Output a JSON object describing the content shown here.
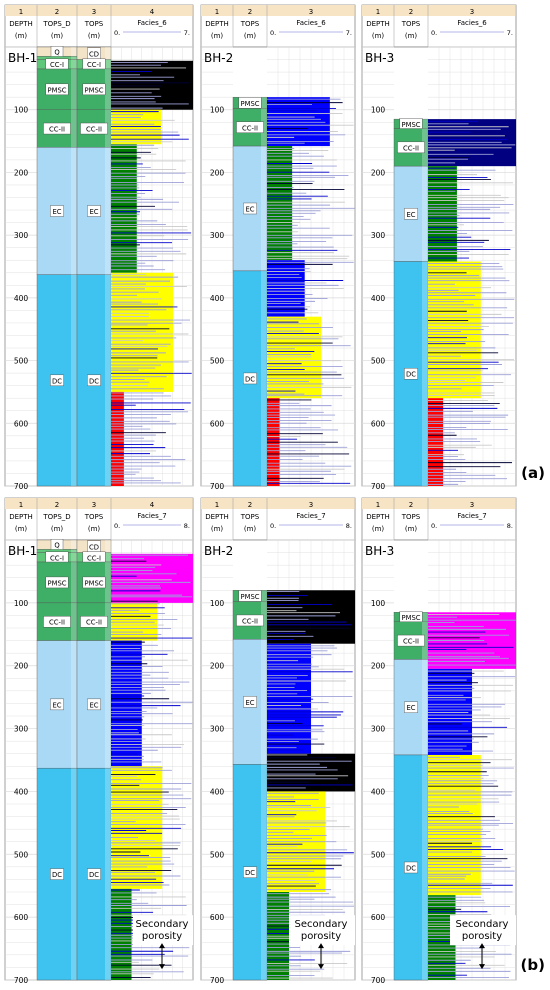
{
  "panels": [
    {
      "label": "(a)",
      "facies_name": "Facies_6",
      "scale_min": "0.",
      "scale_max": "7.",
      "wells": [
        {
          "name": "BH-1",
          "headers": [
            {
              "num": "1",
              "name": "DEPTH",
              "unit": "(m)"
            },
            {
              "num": "2",
              "name": "TOPS_D",
              "unit": "(m)"
            },
            {
              "num": "3",
              "name": "TOPS",
              "unit": "(m)"
            },
            {
              "num": "4",
              "name": "",
              "unit": ""
            }
          ],
          "col2_units": [
            {
              "name": "Q",
              "top": 0,
              "base": 15,
              "color": "#f3e4c8"
            },
            {
              "name": "",
              "top": 15,
              "base": 20,
              "color": "#5fc77a"
            },
            {
              "name": "CC-I",
              "top": 20,
              "base": 35,
              "color": "#5fc77a"
            },
            {
              "name": "PMSC",
              "top": 35,
              "base": 100,
              "color": "#3fae67"
            },
            {
              "name": "CC-II",
              "top": 100,
              "base": 160,
              "color": "#3fae67"
            },
            {
              "name": "EC",
              "top": 160,
              "base": 363,
              "color": "#a9d9f5"
            },
            {
              "name": "DC",
              "top": 363,
              "base": 700,
              "color": "#3ec3f0"
            }
          ],
          "col3_units": [
            {
              "name": "CD",
              "top": 0,
              "base": 20,
              "color": "#f3e4c8"
            },
            {
              "name": "CC-I",
              "top": 20,
              "base": 35,
              "color": "#5fc77a"
            },
            {
              "name": "PMSC",
              "top": 35,
              "base": 100,
              "color": "#3fae67"
            },
            {
              "name": "CC-II",
              "top": 100,
              "base": 160,
              "color": "#3fae67"
            },
            {
              "name": "EC",
              "top": 160,
              "base": 363,
              "color": "#a9d9f5"
            },
            {
              "name": "DC",
              "top": 363,
              "base": 700,
              "color": "#3ec3f0"
            }
          ],
          "facies": [
            {
              "top": 22,
              "base": 100,
              "color": "#000000",
              "value": 7.0
            },
            {
              "top": 100,
              "base": 155,
              "color": "#ffff00",
              "value": 4.3
            },
            {
              "top": 155,
              "base": 360,
              "color": "#008000",
              "value": 2.2
            },
            {
              "top": 360,
              "base": 550,
              "color": "#ffff00",
              "value": 5.3
            },
            {
              "top": 550,
              "base": 700,
              "color": "#ff0000",
              "value": 1.1
            }
          ]
        },
        {
          "name": "BH-2",
          "headers": [
            {
              "num": "1",
              "name": "DEPTH",
              "unit": "(m)"
            },
            {
              "num": "2",
              "name": "TOPS",
              "unit": "(m)"
            },
            {
              "num": "3",
              "name": "",
              "unit": ""
            }
          ],
          "col2_units": [
            {
              "name": "PMSC",
              "top": 80,
              "base": 98,
              "color": "#3fae67"
            },
            {
              "name": "CC-II",
              "top": 98,
              "base": 158,
              "color": "#3fae67"
            },
            {
              "name": "EC",
              "top": 158,
              "base": 357,
              "color": "#a9d9f5"
            },
            {
              "name": "DC",
              "top": 357,
              "base": 700,
              "color": "#3ec3f0"
            }
          ],
          "facies": [
            {
              "top": 80,
              "base": 158,
              "color": "#0000ff",
              "value": 5.0
            },
            {
              "top": 158,
              "base": 340,
              "color": "#008000",
              "value": 2.0
            },
            {
              "top": 340,
              "base": 430,
              "color": "#0000ff",
              "value": 3.0
            },
            {
              "top": 430,
              "base": 560,
              "color": "#ffff00",
              "value": 4.3
            },
            {
              "top": 560,
              "base": 700,
              "color": "#ff0000",
              "value": 1.0
            }
          ]
        },
        {
          "name": "BH-3",
          "headers": [
            {
              "num": "1",
              "name": "DEPTH",
              "unit": "(m)"
            },
            {
              "num": "2",
              "name": "TOPS",
              "unit": "(m)"
            },
            {
              "num": "3",
              "name": "",
              "unit": ""
            }
          ],
          "col2_units": [
            {
              "name": "PMSC",
              "top": 115,
              "base": 130,
              "color": "#3fae67"
            },
            {
              "name": "CC-II",
              "top": 130,
              "base": 190,
              "color": "#3fae67"
            },
            {
              "name": "EC",
              "top": 190,
              "base": 342,
              "color": "#a9d9f5"
            },
            {
              "name": "DC",
              "top": 342,
              "base": 700,
              "color": "#3ec3f0"
            }
          ],
          "facies": [
            {
              "top": 115,
              "base": 190,
              "color": "#000080",
              "value": 7.0
            },
            {
              "top": 190,
              "base": 342,
              "color": "#008000",
              "value": 2.3
            },
            {
              "top": 342,
              "base": 560,
              "color": "#ffff00",
              "value": 4.2
            },
            {
              "top": 560,
              "base": 700,
              "color": "#ff0000",
              "value": 1.2
            }
          ]
        }
      ]
    },
    {
      "label": "(b)",
      "facies_name": "Facies_7",
      "scale_min": "0.",
      "scale_max": "8.",
      "wells": [
        {
          "name": "BH-1",
          "headers": [
            {
              "num": "1",
              "name": "DEPTH",
              "unit": "(m)"
            },
            {
              "num": "2",
              "name": "TOPS_D",
              "unit": "(m)"
            },
            {
              "num": "3",
              "name": "TOPS",
              "unit": "(m)"
            },
            {
              "num": "4",
              "name": "",
              "unit": ""
            }
          ],
          "col2_units": [
            {
              "name": "Q",
              "top": 0,
              "base": 15,
              "color": "#f3e4c8"
            },
            {
              "name": "",
              "top": 15,
              "base": 20,
              "color": "#5fc77a"
            },
            {
              "name": "CC-I",
              "top": 20,
              "base": 35,
              "color": "#5fc77a"
            },
            {
              "name": "PMSC",
              "top": 35,
              "base": 100,
              "color": "#3fae67"
            },
            {
              "name": "CC-II",
              "top": 100,
              "base": 160,
              "color": "#3fae67"
            },
            {
              "name": "EC",
              "top": 160,
              "base": 363,
              "color": "#a9d9f5"
            },
            {
              "name": "DC",
              "top": 363,
              "base": 700,
              "color": "#3ec3f0"
            }
          ],
          "col3_units": [
            {
              "name": "CD",
              "top": 0,
              "base": 20,
              "color": "#f3e4c8"
            },
            {
              "name": "CC-I",
              "top": 20,
              "base": 35,
              "color": "#5fc77a"
            },
            {
              "name": "PMSC",
              "top": 35,
              "base": 100,
              "color": "#3fae67"
            },
            {
              "name": "CC-II",
              "top": 100,
              "base": 160,
              "color": "#3fae67"
            },
            {
              "name": "EC",
              "top": 160,
              "base": 363,
              "color": "#a9d9f5"
            },
            {
              "name": "DC",
              "top": 363,
              "base": 700,
              "color": "#3ec3f0"
            }
          ],
          "facies": [
            {
              "top": 22,
              "base": 100,
              "color": "#ff00ff",
              "value": 8.0
            },
            {
              "top": 100,
              "base": 160,
              "color": "#ffff00",
              "value": 4.5
            },
            {
              "top": 160,
              "base": 360,
              "color": "#0000ff",
              "value": 3.0
            },
            {
              "top": 360,
              "base": 555,
              "color": "#ffff00",
              "value": 5.0
            },
            {
              "top": 555,
              "base": 700,
              "color": "#008000",
              "value": 2.0
            }
          ],
          "annotation": "Secondary porosity"
        },
        {
          "name": "BH-2",
          "headers": [
            {
              "num": "1",
              "name": "DEPTH",
              "unit": "(m)"
            },
            {
              "num": "2",
              "name": "TOPS",
              "unit": "(m)"
            },
            {
              "num": "3",
              "name": "",
              "unit": ""
            }
          ],
          "col2_units": [
            {
              "name": "PMSC",
              "top": 80,
              "base": 98,
              "color": "#3fae67"
            },
            {
              "name": "CC-II",
              "top": 98,
              "base": 158,
              "color": "#3fae67"
            },
            {
              "name": "EC",
              "top": 158,
              "base": 357,
              "color": "#a9d9f5"
            },
            {
              "name": "DC",
              "top": 357,
              "base": 700,
              "color": "#3ec3f0"
            }
          ],
          "facies": [
            {
              "top": 80,
              "base": 165,
              "color": "#000000",
              "value": 8.0
            },
            {
              "top": 165,
              "base": 340,
              "color": "#0000ff",
              "value": 4.0
            },
            {
              "top": 340,
              "base": 400,
              "color": "#000000",
              "value": 8.0
            },
            {
              "top": 400,
              "base": 560,
              "color": "#ffff00",
              "value": 5.3
            },
            {
              "top": 560,
              "base": 700,
              "color": "#008000",
              "value": 2.0
            }
          ],
          "annotation": "Secondary porosity"
        },
        {
          "name": "BH-3",
          "headers": [
            {
              "num": "1",
              "name": "DEPTH",
              "unit": "(m)"
            },
            {
              "num": "2",
              "name": "TOPS",
              "unit": "(m)"
            },
            {
              "num": "3",
              "name": "",
              "unit": ""
            }
          ],
          "col2_units": [
            {
              "name": "PMSC",
              "top": 115,
              "base": 130,
              "color": "#3fae67"
            },
            {
              "name": "CC-II",
              "top": 130,
              "base": 190,
              "color": "#3fae67"
            },
            {
              "name": "EC",
              "top": 190,
              "base": 342,
              "color": "#a9d9f5"
            },
            {
              "name": "DC",
              "top": 342,
              "base": 700,
              "color": "#3ec3f0"
            }
          ],
          "facies": [
            {
              "top": 115,
              "base": 205,
              "color": "#ff00ff",
              "value": 8.0
            },
            {
              "top": 205,
              "base": 342,
              "color": "#0000ff",
              "value": 4.0
            },
            {
              "top": 342,
              "base": 565,
              "color": "#ffff00",
              "value": 4.8
            },
            {
              "top": 565,
              "base": 700,
              "color": "#008000",
              "value": 2.5
            }
          ],
          "annotation": "Secondary porosity"
        }
      ]
    }
  ],
  "depth_ticks": [
    "100",
    "200",
    "300",
    "400",
    "500",
    "600",
    "700"
  ],
  "colors": {
    "header_bg": "#f7e4c4",
    "grid": "#d9d9d9",
    "thin_line": "#9da0d8"
  }
}
